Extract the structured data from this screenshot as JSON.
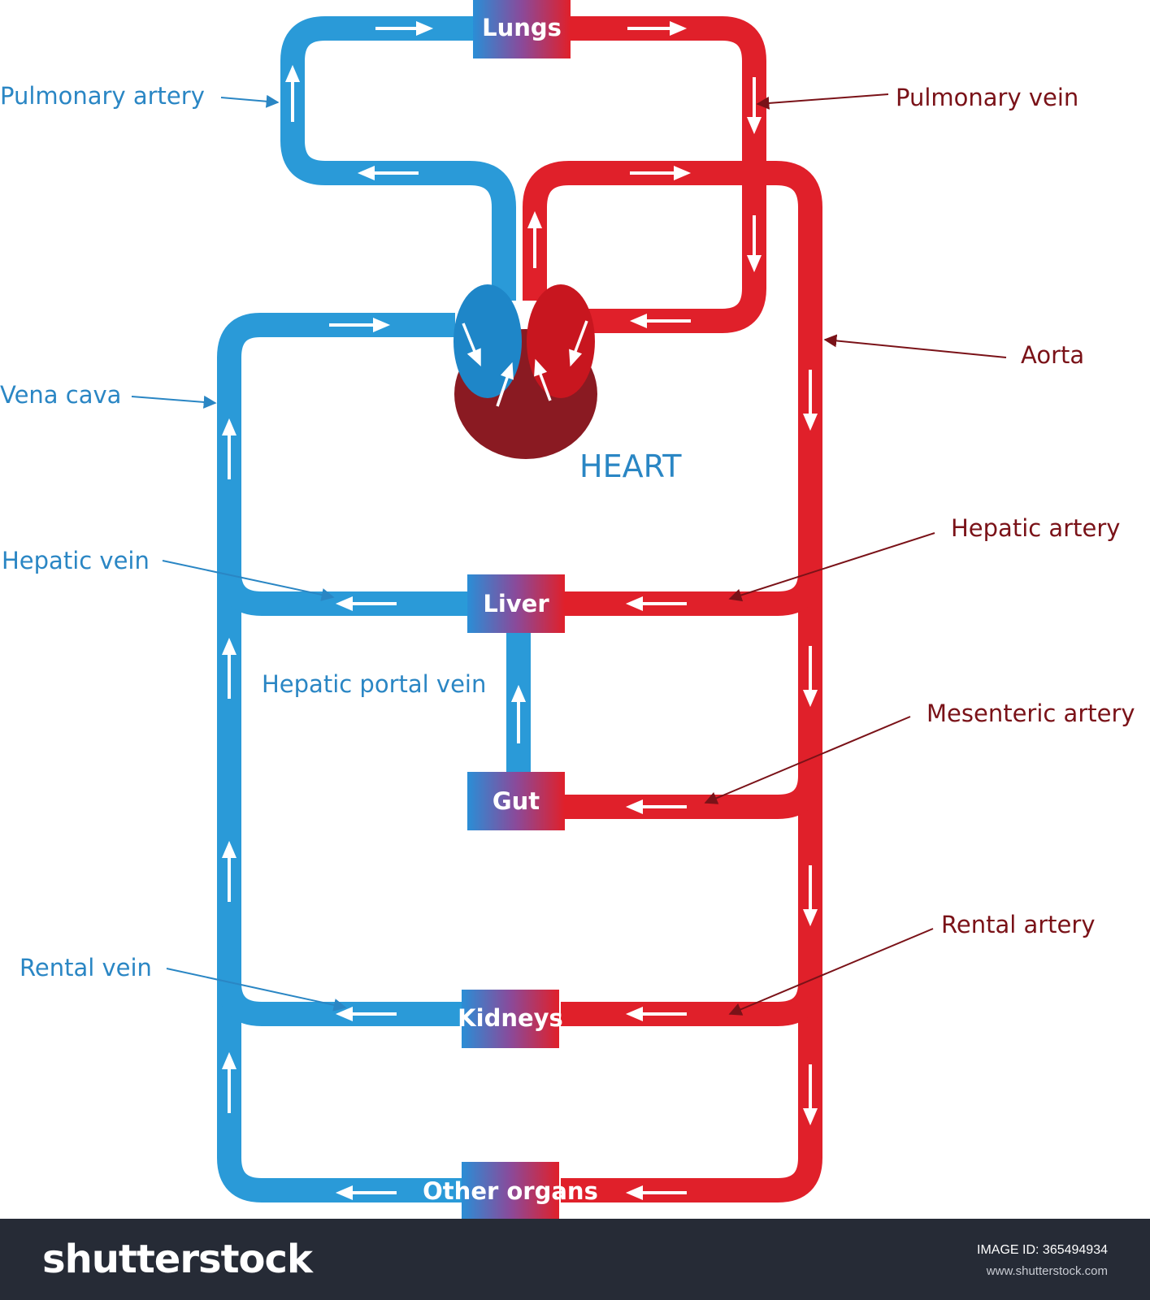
{
  "organs": {
    "lungs": "Lungs",
    "liver": "Liver",
    "gut": "Gut",
    "kidneys": "Kidneys",
    "other_organs": "Other organs"
  },
  "heart_label": "HEART",
  "labels": {
    "pulmonary_artery": "Pulmonary artery",
    "pulmonary_vein": "Pulmonary vein",
    "aorta": "Aorta",
    "vena_cava": "Vena cava",
    "hepatic_vein": "Hepatic vein",
    "hepatic_artery": "Hepatic artery",
    "hepatic_portal_vein": "Hepatic portal vein",
    "mesenteric_artery": "Mesenteric artery",
    "rental_vein": "Rental vein",
    "rental_artery": "Rental artery"
  },
  "footer": {
    "brand": "shutterstock",
    "image_id": "IMAGE ID: 365494934",
    "site": "www.shutterstock.com"
  },
  "colors": {
    "oxygenated": "#e0202a",
    "deoxygenated": "#2a9ad8",
    "label_blue": "#2a86c4",
    "label_red": "#7a1218"
  }
}
